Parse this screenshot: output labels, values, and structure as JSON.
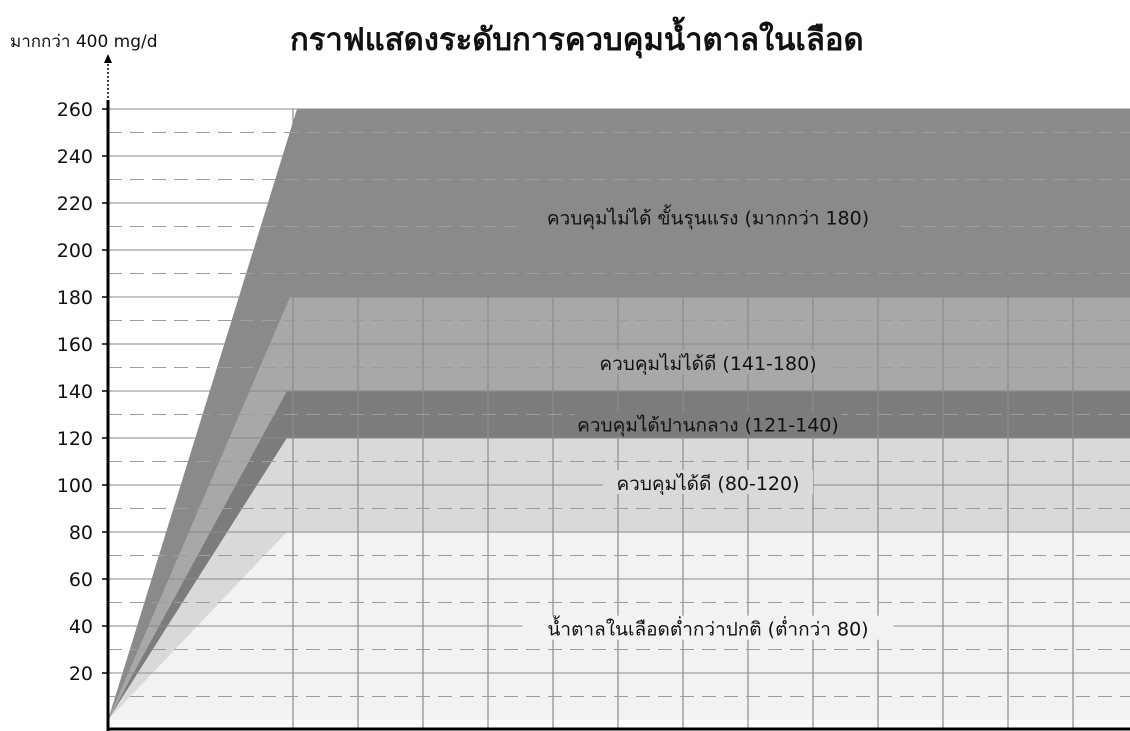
{
  "chart_data": {
    "type": "area",
    "title": "กราฟแสดงระดับการควบคุมน้ำตาลในเลือด",
    "ylabel_note": "มากกว่า 400 mg/d",
    "ylim": [
      0,
      270
    ],
    "yticks": [
      20,
      40,
      60,
      80,
      100,
      120,
      140,
      160,
      180,
      200,
      220,
      240,
      260
    ],
    "grid": true,
    "bands": [
      {
        "name": "ควบคุมไม่ได้ ขั้นรุนแรง (มากกว่า 180)",
        "min": 180,
        "max": 260,
        "color": "#8a8a8a"
      },
      {
        "name": "ควบคุมไม่ได้ดี (141-180)",
        "min": 140,
        "max": 180,
        "color": "#a8a8a8"
      },
      {
        "name": "ควบคุมได้ปานกลาง (121-140)",
        "min": 120,
        "max": 140,
        "color": "#7c7c7c"
      },
      {
        "name": "ควบคุมได้ดี (80-120)",
        "min": 80,
        "max": 120,
        "color": "#d9d9d9"
      },
      {
        "name": "น้ำตาลในเลือดต่ำกว่าปกติ (ต่ำกว่า 80)",
        "min": 0,
        "max": 80,
        "color": "#f2f2f2"
      }
    ]
  }
}
